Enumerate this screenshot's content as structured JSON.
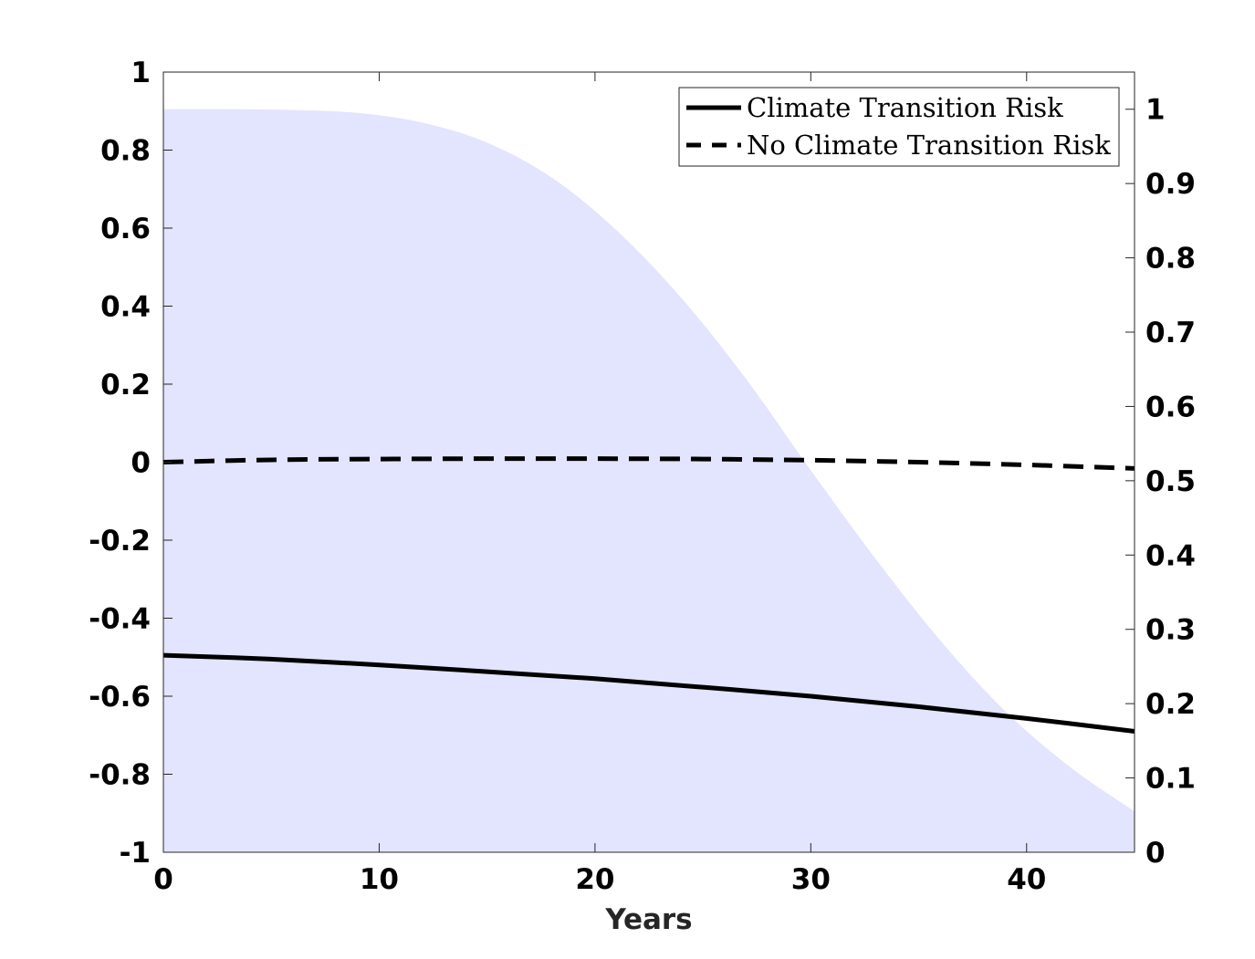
{
  "chart_data": {
    "type": "line",
    "title": "",
    "xlabel": "Years",
    "ylabel": "",
    "xlim": [
      0,
      45
    ],
    "ylim_left": [
      -1,
      1
    ],
    "ylim_right": [
      0,
      1.05
    ],
    "x_ticks": [
      0,
      10,
      20,
      30,
      40
    ],
    "y_ticks_left": [
      -1,
      -0.8,
      -0.6,
      -0.4,
      -0.2,
      0,
      0.2,
      0.4,
      0.6,
      0.8,
      1
    ],
    "y_ticks_right": [
      0,
      0.1,
      0.2,
      0.3,
      0.4,
      0.5,
      0.6,
      0.7,
      0.8,
      0.9,
      1
    ],
    "legend_position": "top-right",
    "grid": false,
    "series": [
      {
        "name": "Climate Transition Risk",
        "axis": "left",
        "style": "solid",
        "color": "#000000",
        "x": [
          0,
          5,
          10,
          15,
          20,
          25,
          30,
          35,
          40,
          45
        ],
        "y": [
          -0.495,
          -0.505,
          -0.52,
          -0.537,
          -0.555,
          -0.577,
          -0.6,
          -0.627,
          -0.657,
          -0.69
        ]
      },
      {
        "name": "No Climate Transition Risk",
        "axis": "left",
        "style": "dashed",
        "color": "#000000",
        "x": [
          0,
          5,
          10,
          15,
          20,
          25,
          30,
          35,
          40,
          45
        ],
        "y": [
          0.0,
          0.006,
          0.008,
          0.009,
          0.009,
          0.008,
          0.005,
          0.0,
          -0.007,
          -0.016
        ]
      }
    ],
    "area": {
      "axis": "right",
      "color": "#e3e4fd",
      "x": [
        0,
        3,
        6,
        9,
        12,
        15,
        18,
        21,
        24,
        27,
        30,
        33,
        36,
        39,
        42,
        45
      ],
      "y": [
        1.0,
        1.0,
        0.999,
        0.995,
        0.982,
        0.955,
        0.908,
        0.837,
        0.746,
        0.637,
        0.514,
        0.395,
        0.285,
        0.19,
        0.115,
        0.055
      ]
    }
  }
}
